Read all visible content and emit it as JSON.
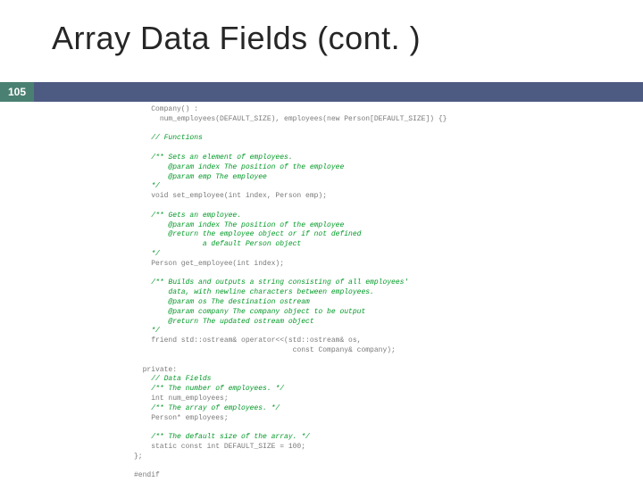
{
  "title": "Array Data Fields (cont. )",
  "pageNumber": "105",
  "colors": {
    "titleText": "#262626",
    "pageBox": "#4a8071",
    "band": "#4d5b82",
    "codeText": "#7a7a7a",
    "commentText": "#009926",
    "background": "#ffffff"
  },
  "typography": {
    "titleFontSize": 36,
    "codeFontSize": 8,
    "codeFontFamily": "Consolas, Courier New, monospace",
    "titleFontFamily": "Arial, Helvetica, sans-serif"
  },
  "code": {
    "l0": "Company() :",
    "l1": "num_employees(DEFAULT_SIZE), employees(new Person[DEFAULT_SIZE]) {}",
    "l2": "// Functions",
    "l3": "/** Sets an element of employees.",
    "l4": "        @param index The position of the employee",
    "l5": "        @param emp The employee",
    "l6": "    */",
    "l7": "void set_employee(int index, Person emp);",
    "l8": "/** Gets an employee.",
    "l9": "        @param index The position of the employee",
    "l10": "        @return the employee object or if not defined",
    "l11": "                a default Person object",
    "l12": "    */",
    "l13": "Person get_employee(int index);",
    "l14": "/** Builds and outputs a string consisting of all employees'",
    "l15": "        data, with newline characters between employees.",
    "l16": "        @param os The destination ostream",
    "l17": "        @param company The company object to be output",
    "l18": "        @return The updated ostream object",
    "l19": "    */",
    "l20": "friend std::ostream& operator<<(std::ostream& os,",
    "l21": "const Company& company);",
    "l22": "private:",
    "l23": "// Data Fields",
    "l24": "/** The number of employees. */",
    "l25": "int num_employees;",
    "l26": "/** The array of employees. */",
    "l27": "Person* employees;",
    "l28": "/** The default size of the array. */",
    "l29": "static const int DEFAULT_SIZE = 100;",
    "l30": "};",
    "l31": "#endif"
  }
}
